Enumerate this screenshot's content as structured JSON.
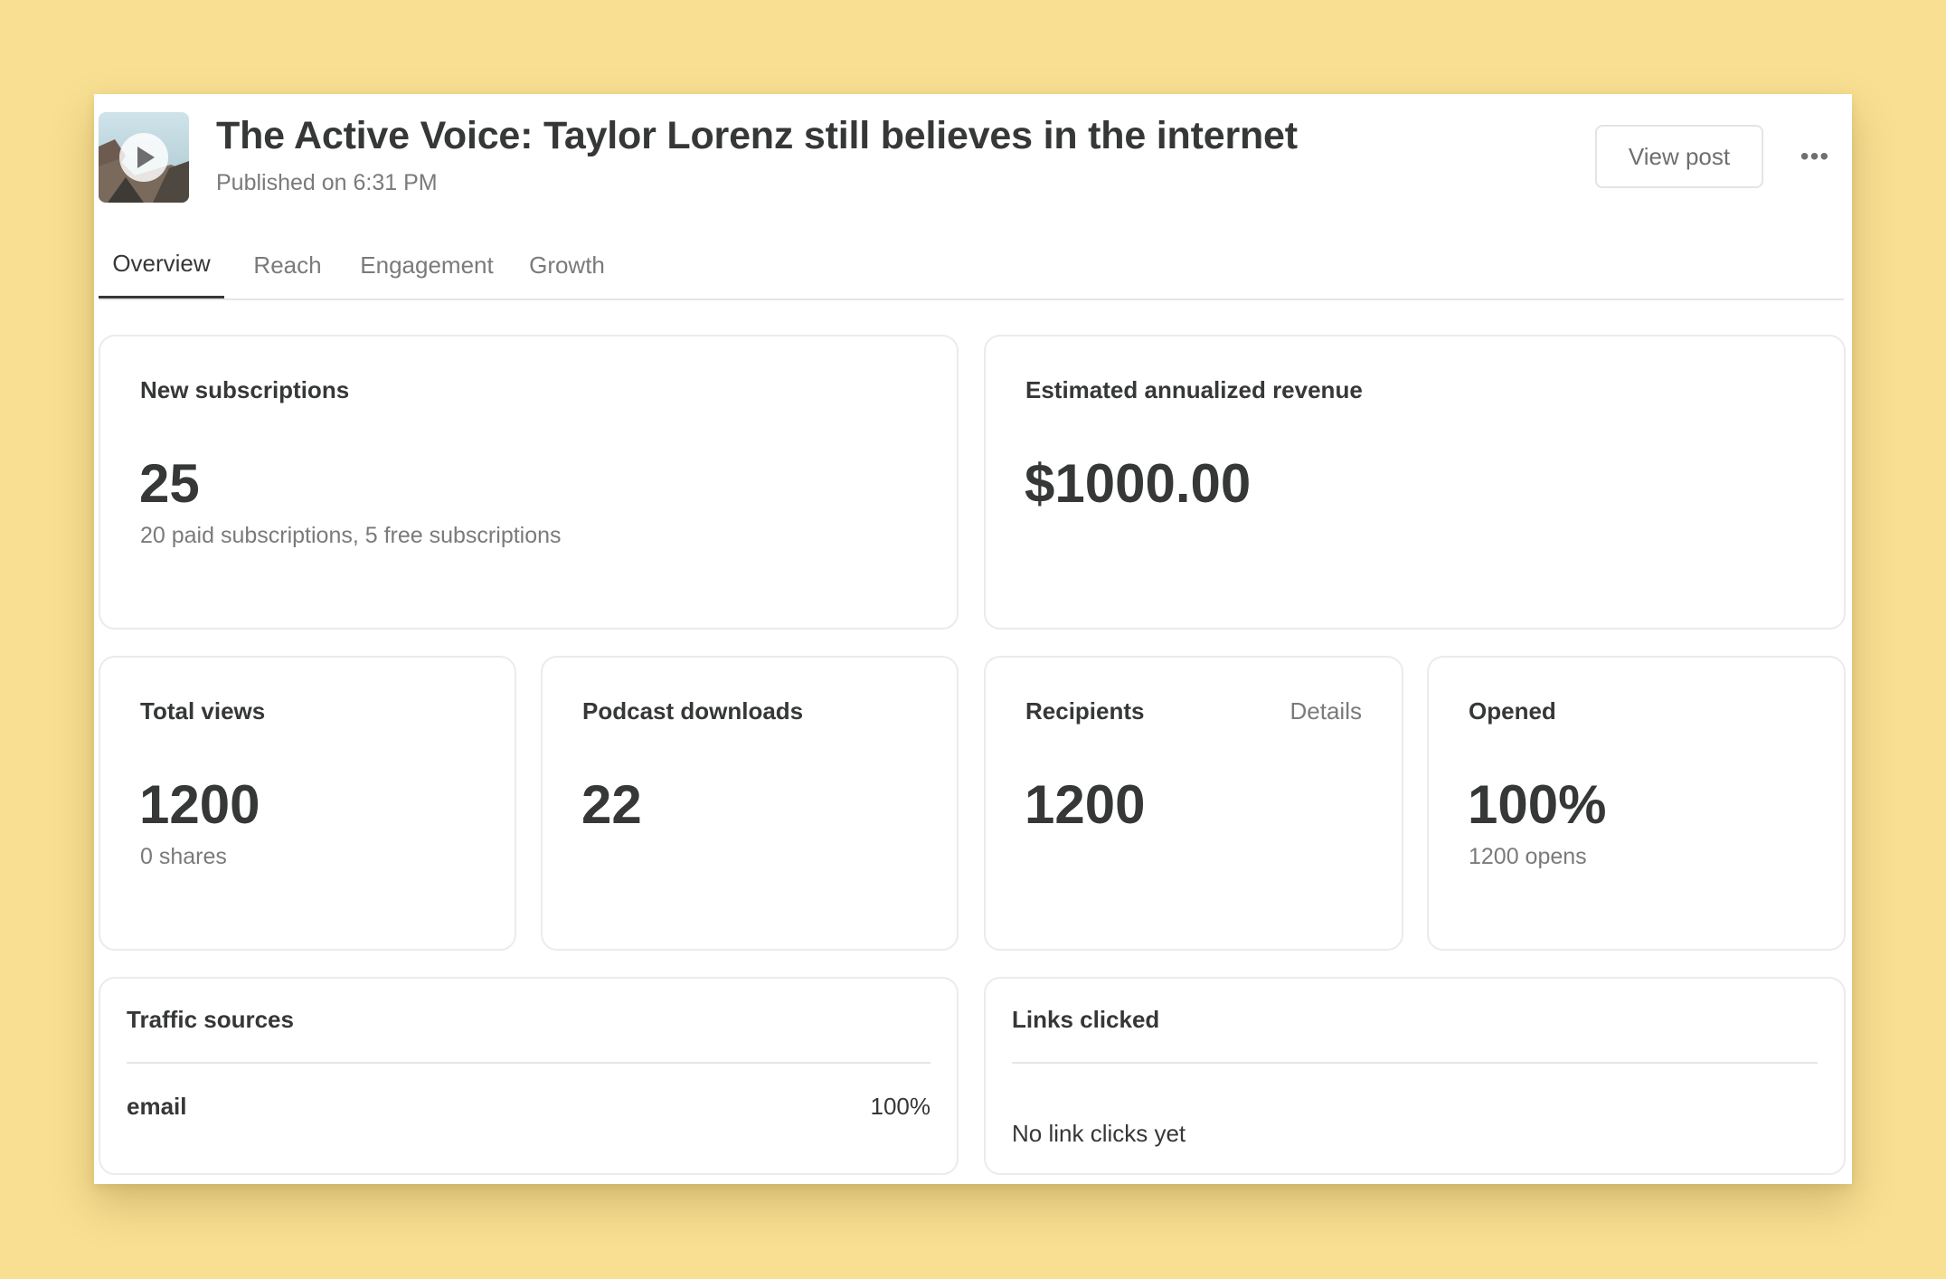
{
  "post": {
    "title": "The Active Voice: Taylor Lorenz still believes in the internet",
    "published": "Published on 6:31 PM",
    "thumbnail_icon": "play-icon"
  },
  "header": {
    "view_post_label": "View post",
    "more_icon": "more-horizontal-icon",
    "more_glyph": "•••"
  },
  "tabs": [
    {
      "label": "Overview",
      "active": true
    },
    {
      "label": "Reach",
      "active": false
    },
    {
      "label": "Engagement",
      "active": false
    },
    {
      "label": "Growth",
      "active": false
    }
  ],
  "stats": {
    "new_subscriptions": {
      "label": "New subscriptions",
      "value": "25",
      "note": "20 paid subscriptions, 5 free subscriptions"
    },
    "revenue": {
      "label": "Estimated annualized revenue",
      "value": "$1000.00"
    },
    "total_views": {
      "label": "Total views",
      "value": "1200",
      "note": "0 shares"
    },
    "podcast_downloads": {
      "label": "Podcast downloads",
      "value": "22"
    },
    "recipients": {
      "label": "Recipients",
      "link": "Details",
      "value": "1200"
    },
    "opened": {
      "label": "Opened",
      "value": "100%",
      "note": "1200 opens"
    }
  },
  "traffic_sources": {
    "label": "Traffic sources",
    "rows": [
      {
        "name": "email",
        "percent": "100%"
      }
    ]
  },
  "links_clicked": {
    "label": "Links clicked",
    "empty_text": "No link clicks yet"
  },
  "colors": {
    "background": "#f8df92",
    "text_primary": "#363737",
    "text_muted": "#7a7a7a",
    "border": "#ebebeb"
  }
}
